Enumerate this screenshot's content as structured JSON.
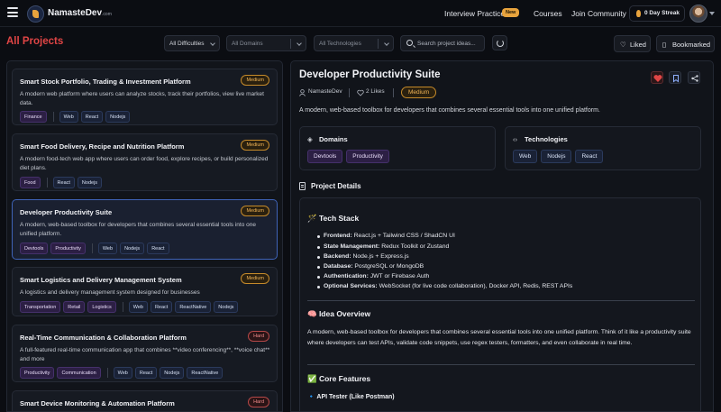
{
  "header": {
    "brand": "NamasteDev",
    "brand_suffix": ".com",
    "nav": [
      {
        "label": "Interview Practice",
        "badge": "New"
      },
      {
        "label": "Courses"
      },
      {
        "label": "Join Community"
      }
    ],
    "streak": "0 Day Streak"
  },
  "toolbar": {
    "title": "All Projects",
    "filters": [
      {
        "value": "All Difficulties"
      },
      {
        "value": "All Domains"
      },
      {
        "value": "All Technologies"
      }
    ],
    "search_placeholder": "Search project ideas...",
    "liked_label": "Liked",
    "bookmarked_label": "Bookmarked"
  },
  "projects": [
    {
      "title": "Smart Stock Portfolio, Trading & Investment Platform",
      "difficulty": "Medium",
      "desc": "A modern web platform where users can analyze stocks, track their portfolios, view live market data.",
      "domains": [
        "Finance"
      ],
      "tech": [
        "Web",
        "React",
        "Nodejs"
      ]
    },
    {
      "title": "Smart Food Delivery, Recipe and Nutrition Platform",
      "difficulty": "Medium",
      "desc": "A modern food-tech web app where users can order food, explore recipes, or build personalized diet plans.",
      "domains": [
        "Food"
      ],
      "tech": [
        "React",
        "Nodejs"
      ]
    },
    {
      "title": "Developer Productivity Suite",
      "difficulty": "Medium",
      "desc": "A modern, web-based toolbox for developers that combines several essential tools into one unified platform.",
      "domains": [
        "Devtools",
        "Productivity"
      ],
      "tech": [
        "Web",
        "Nodejs",
        "React"
      ]
    },
    {
      "title": "Smart Logistics and Delivery Management System",
      "difficulty": "Medium",
      "desc": "A logistics and delivery management system designed for businesses",
      "domains": [
        "Transportation",
        "Retail",
        "Logistics"
      ],
      "tech": [
        "Web",
        "React",
        "ReactNative",
        "Nodejs"
      ]
    },
    {
      "title": "Real-Time Communication & Collaboration Platform",
      "difficulty": "Hard",
      "desc": "A full-featured real-time communication app that combines **video conferencing**, **voice chat** and more",
      "domains": [
        "Productivity",
        "Communication"
      ],
      "tech": [
        "Web",
        "React",
        "Nodejs",
        "ReactNative"
      ]
    },
    {
      "title": "Smart Device Monitoring & Automation Platform",
      "difficulty": "Hard",
      "desc": "",
      "domains": [],
      "tech": []
    }
  ],
  "detail": {
    "title": "Developer Productivity Suite",
    "author": "NamasteDev",
    "likes": "2 Likes",
    "difficulty": "Medium",
    "desc": "A modern, web-based toolbox for developers that combines several essential tools into one unified platform.",
    "domains_label": "Domains",
    "domains": [
      "Devtools",
      "Productivity"
    ],
    "tech_label": "Technologies",
    "tech": [
      "Web",
      "Nodejs",
      "React"
    ],
    "project_details_label": "Project Details",
    "tech_stack_heading": "🪄 Tech Stack",
    "stack": [
      {
        "k": "Frontend:",
        "v": " React.js + Tailwind CSS / ShadCN UI"
      },
      {
        "k": "State Management:",
        "v": " Redux Toolkit or Zustand"
      },
      {
        "k": "Backend:",
        "v": " Node.js + Express.js"
      },
      {
        "k": "Database:",
        "v": " PostgreSQL or MongoDB"
      },
      {
        "k": "Authentication:",
        "v": " JWT or Firebase Auth"
      },
      {
        "k": "Optional Services:",
        "v": " WebSocket (for live code collaboration), Docker API, Redis, REST APIs"
      }
    ],
    "idea_heading": "🧠 Idea Overview",
    "idea_text": "A modern, web-based toolbox for developers that combines several essential tools into one unified platform. Think of it like a productivity suite where developers can test APIs, validate code snippets, use regex testers, formatters, and even collaborate in real time.",
    "core_heading": "✅ Core Features",
    "api_heading": "🔹 API Tester (Like Postman)"
  },
  "colors": {
    "accent_red": "#e04545",
    "medium": "#f0b356",
    "hard": "#f08a8a",
    "selected_border": "#3f63b8"
  }
}
